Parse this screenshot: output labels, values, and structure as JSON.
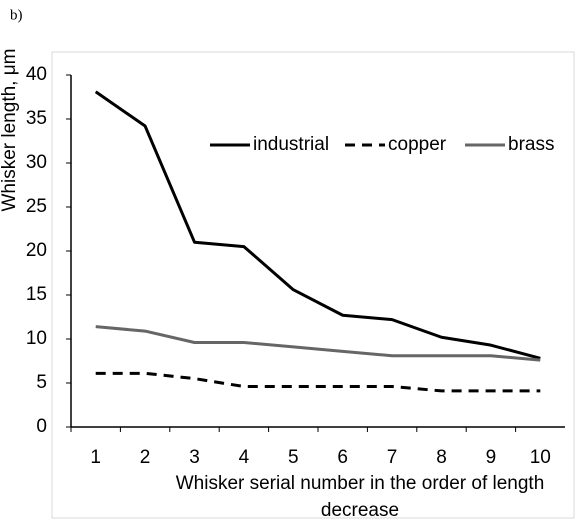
{
  "chart_data": {
    "type": "line",
    "panel_label": "b)",
    "y_label": "Whisker length, μm",
    "x_label": "Whisker serial number in the order of length decrease",
    "categories": [
      "1",
      "2",
      "3",
      "4",
      "5",
      "6",
      "7",
      "8",
      "9",
      "10"
    ],
    "series": [
      {
        "name": "industrial",
        "color": "#000000",
        "line_style": "solid",
        "values": [
          38.1,
          34.2,
          21.0,
          20.5,
          15.6,
          12.7,
          12.2,
          10.2,
          9.3,
          7.8
        ]
      },
      {
        "name": "copper",
        "color": "#000000",
        "line_style": "dashed",
        "values": [
          6.1,
          6.1,
          5.5,
          4.6,
          4.6,
          4.6,
          4.6,
          4.1,
          4.1,
          4.1
        ]
      },
      {
        "name": "brass",
        "color": "#666666",
        "line_style": "solid",
        "values": [
          11.4,
          10.9,
          9.6,
          9.6,
          9.1,
          8.6,
          8.1,
          8.1,
          8.1,
          7.6
        ]
      }
    ],
    "ylim": [
      0,
      40
    ],
    "yticks": [
      0,
      5,
      10,
      15,
      20,
      25,
      30,
      35,
      40
    ],
    "grid": false
  }
}
